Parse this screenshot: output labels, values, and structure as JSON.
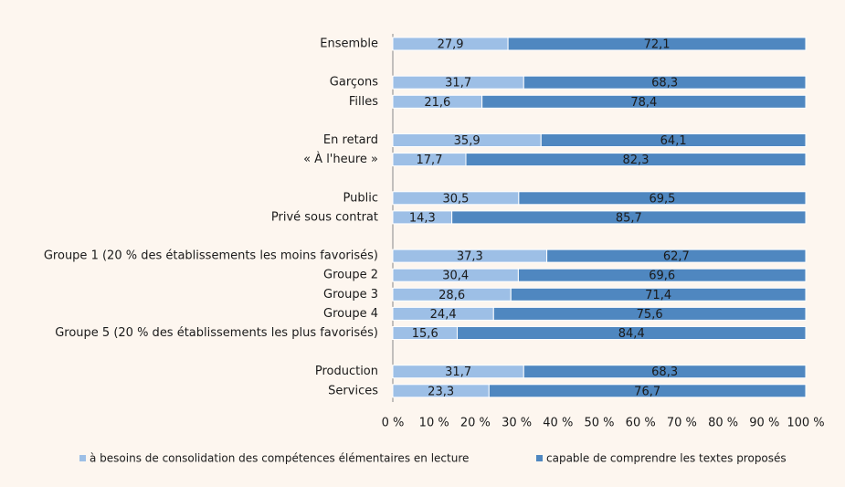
{
  "chart_data": {
    "type": "stacked-bar-horizontal",
    "categories": [
      "Ensemble",
      null,
      "Garçons",
      "Filles",
      null,
      "En retard",
      "« À l'heure »",
      null,
      "Public",
      "Privé sous contrat",
      null,
      "Groupe 1 (20 % des établissements les moins favorisés)",
      "Groupe 2",
      "Groupe 3",
      "Groupe 4",
      "Groupe 5 (20 % des établissements les plus favorisés)",
      null,
      "Production",
      "Services"
    ],
    "series": [
      {
        "name": "à besoins de consolidation des compétences élémentaires en lecture",
        "color": "#9dbfe6",
        "values": [
          27.9,
          null,
          31.7,
          21.6,
          null,
          35.9,
          17.7,
          null,
          30.5,
          14.3,
          null,
          37.3,
          30.4,
          28.6,
          24.4,
          15.6,
          null,
          31.7,
          23.3
        ],
        "value_labels": [
          "27,9",
          null,
          "31,7",
          "21,6",
          null,
          "35,9",
          "17,7",
          null,
          "30,5",
          "14,3",
          null,
          "37,3",
          "30,4",
          "28,6",
          "24,4",
          "15,6",
          null,
          "31,7",
          "23,3"
        ]
      },
      {
        "name": "capable de comprendre les textes proposés",
        "color": "#4f87c0",
        "values": [
          72.1,
          null,
          68.3,
          78.4,
          null,
          64.1,
          82.3,
          null,
          69.5,
          85.7,
          null,
          62.7,
          69.6,
          71.4,
          75.6,
          84.4,
          null,
          68.3,
          76.7
        ],
        "value_labels": [
          "72,1",
          null,
          "68,3",
          "78,4",
          null,
          "64,1",
          "82,3",
          null,
          "69,5",
          "85,7",
          null,
          "62,7",
          "69,6",
          "71,4",
          "75,6",
          "84,4",
          null,
          "68,3",
          "76,7"
        ]
      }
    ],
    "xlim": [
      0,
      100
    ],
    "xticks": [
      {
        "value": 0,
        "label": "0 %"
      },
      {
        "value": 10,
        "label": "10 %"
      },
      {
        "value": 20,
        "label": "20 %"
      },
      {
        "value": 30,
        "label": "30 %"
      },
      {
        "value": 40,
        "label": "40 %"
      },
      {
        "value": 50,
        "label": "50 %"
      },
      {
        "value": 60,
        "label": "60 %"
      },
      {
        "value": 70,
        "label": "70 %"
      },
      {
        "value": 80,
        "label": "80 %"
      },
      {
        "value": 90,
        "label": "90 %"
      },
      {
        "value": 100,
        "label": "100 %"
      }
    ],
    "legend": "bottom"
  }
}
